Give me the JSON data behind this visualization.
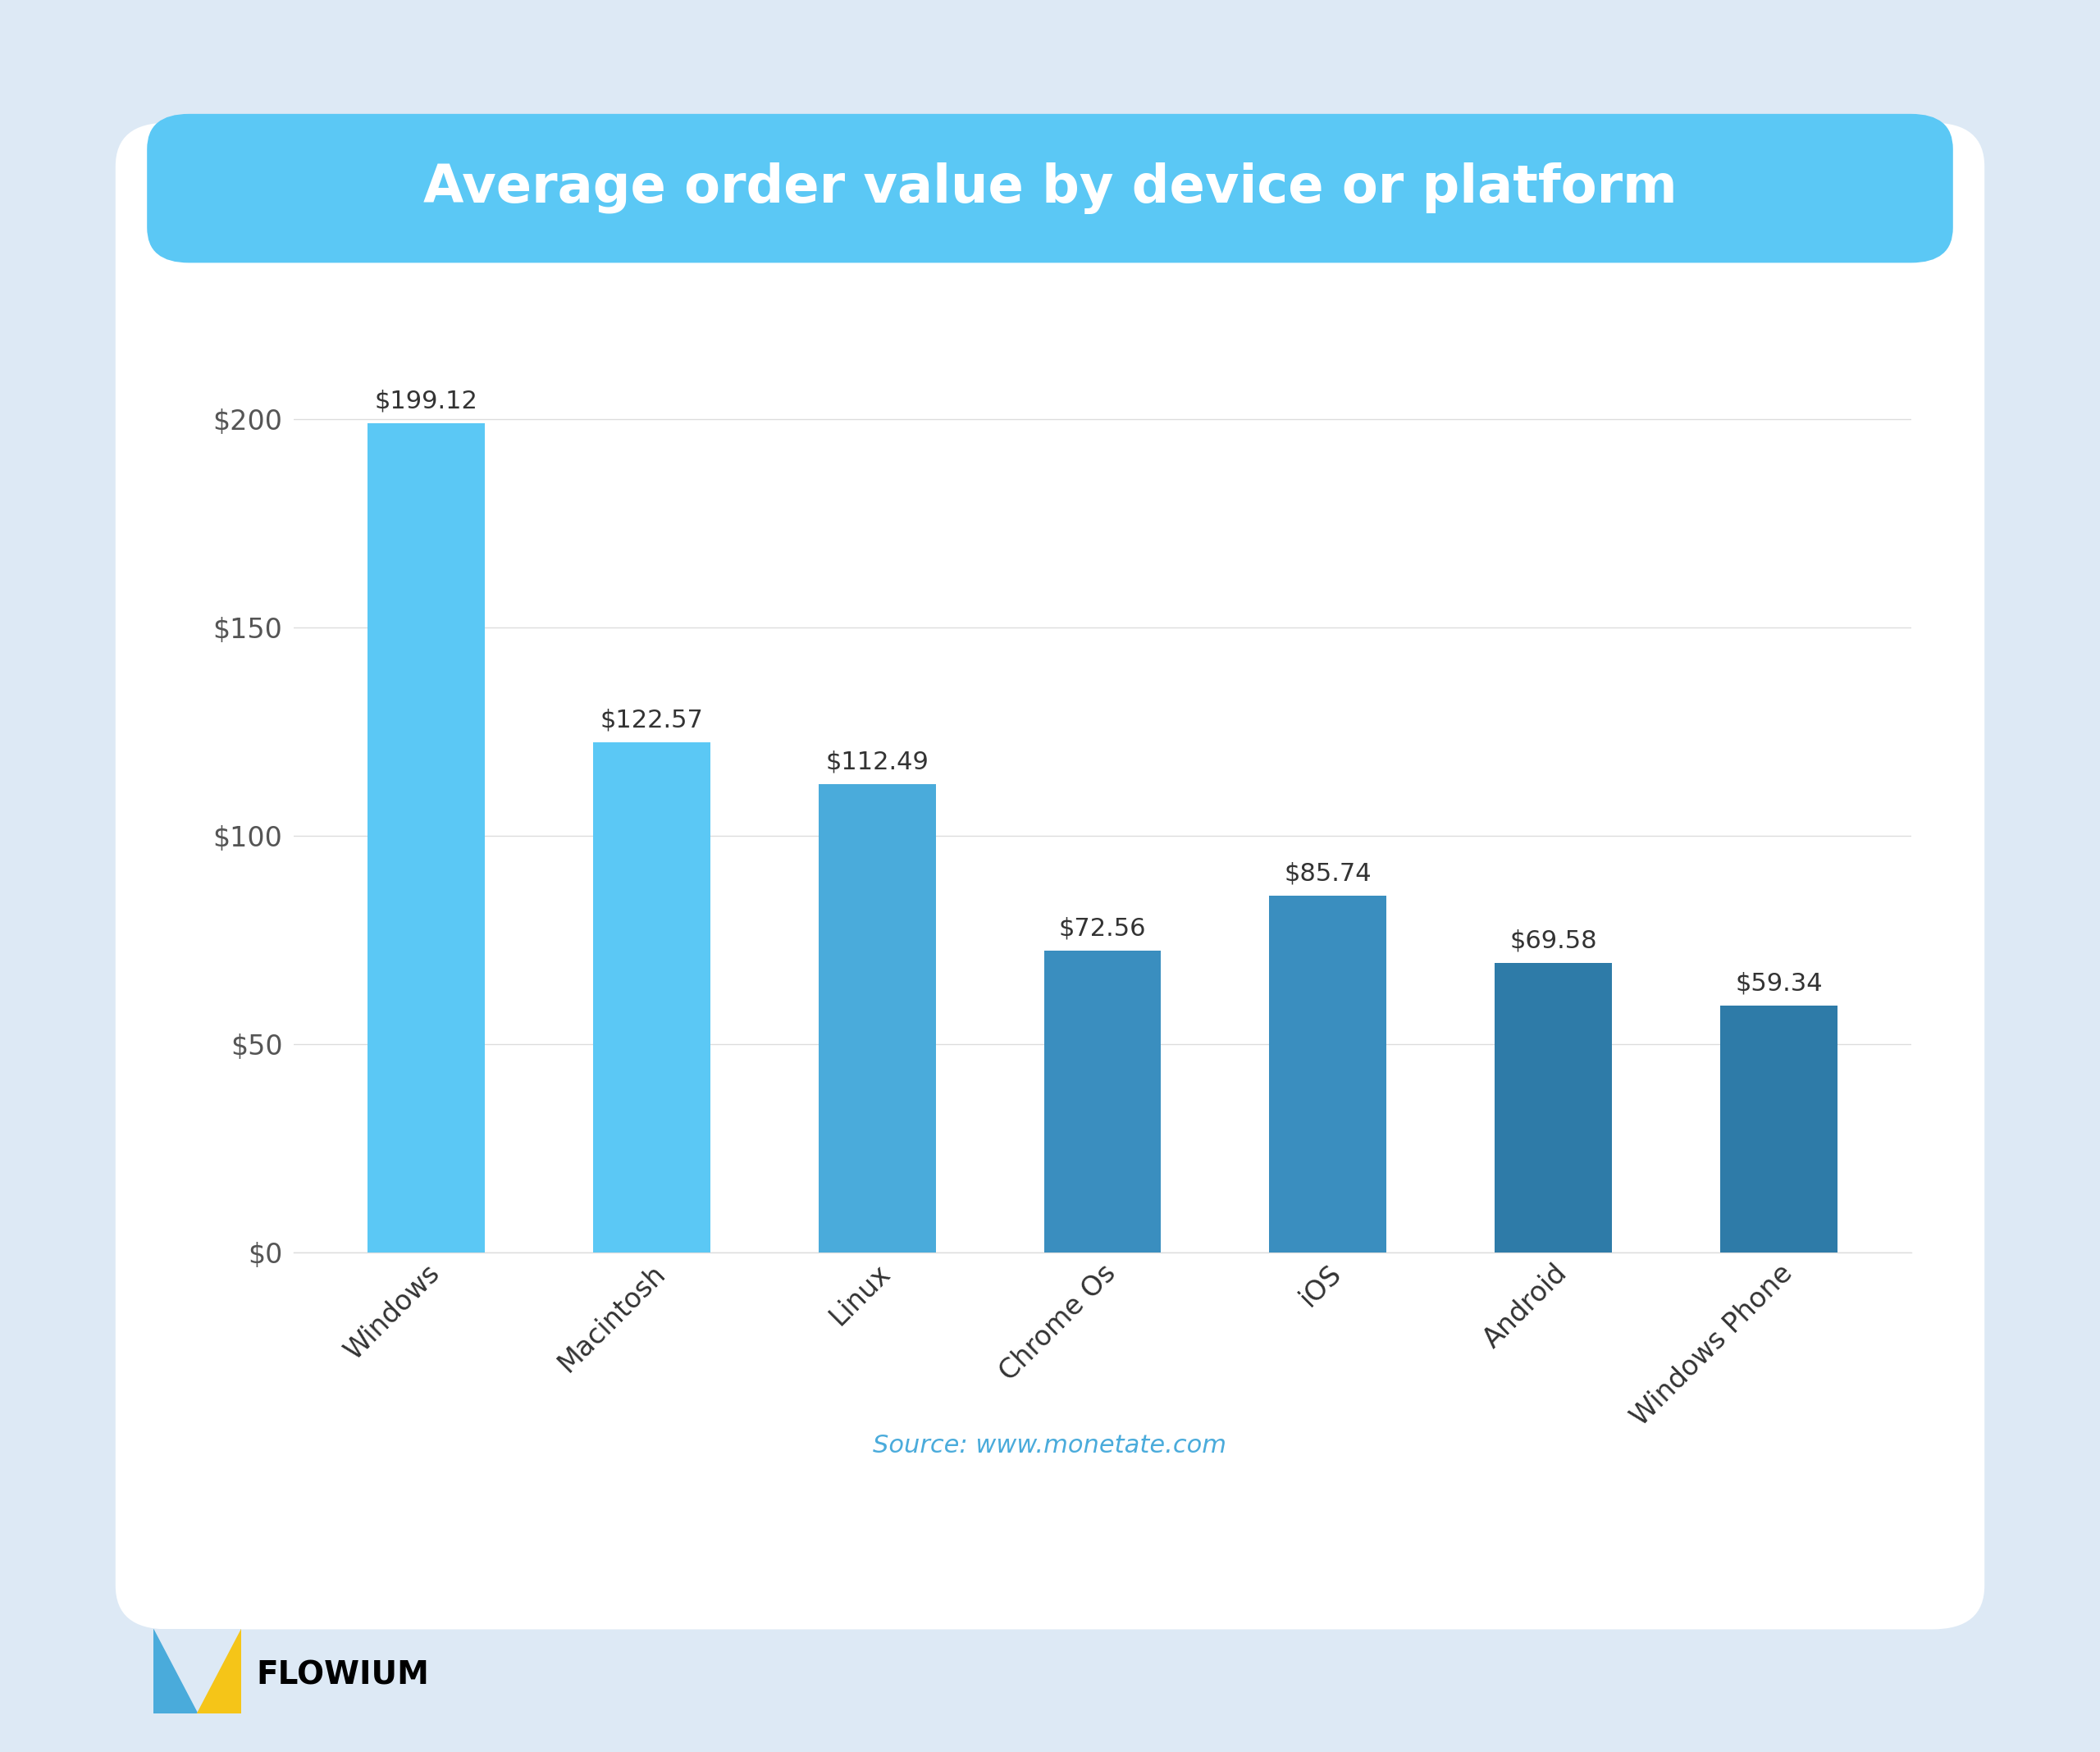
{
  "title": "Average order value by device or platform",
  "categories": [
    "Windows",
    "Macintosh",
    "Linux",
    "Chrome Os",
    "iOS",
    "Android",
    "Windows Phone"
  ],
  "values": [
    199.12,
    122.57,
    112.49,
    72.56,
    85.74,
    69.58,
    59.34
  ],
  "bar_colors": [
    "#5BC8F5",
    "#5BC8F5",
    "#4AABDB",
    "#3A8EBF",
    "#3A8EBF",
    "#2E7BA8",
    "#2E7BA8"
  ],
  "yticks": [
    0,
    50,
    100,
    150,
    200
  ],
  "ytick_labels": [
    "$0",
    "$50",
    "$100",
    "$150",
    "$200"
  ],
  "source_text": "Source: www.monetate.com",
  "source_color": "#4AABDB",
  "outer_bg": "#DDE9F5",
  "card_bg": "#FFFFFF",
  "title_bg": "#5BC8F5",
  "title_color": "#FFFFFF",
  "bar_label_color": "#333333",
  "ytick_color": "#555555",
  "xtick_color": "#333333",
  "grid_color": "#DDDDDD",
  "logo_blue": "#4AABDB",
  "logo_yellow": "#F5C518"
}
